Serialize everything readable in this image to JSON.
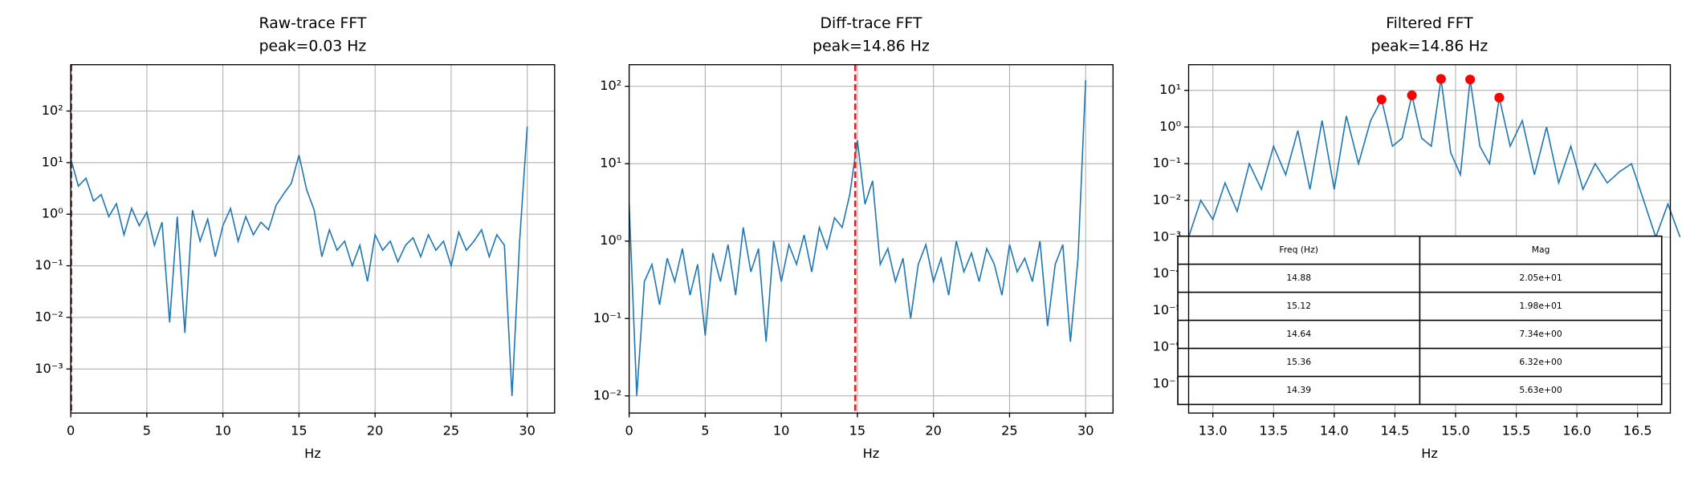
{
  "chart_data": [
    {
      "type": "line",
      "title": "Raw-trace FFT",
      "subtitle": "peak=0.03 Hz",
      "x_label": "Hz",
      "log_y": true,
      "grid": true,
      "color": "#1f77b4",
      "peak_line": {
        "value": 0.03,
        "color": "#d62728"
      },
      "x": [
        0,
        0.5,
        1,
        1.5,
        2,
        2.5,
        3,
        3.5,
        4,
        4.5,
        5,
        5.5,
        6,
        6.5,
        7,
        7.5,
        8,
        8.5,
        9,
        9.5,
        10,
        10.5,
        11,
        11.5,
        12,
        12.5,
        13,
        13.5,
        14,
        14.5,
        15,
        15.5,
        16,
        16.5,
        17,
        17.5,
        18,
        18.5,
        19,
        19.5,
        20,
        20.5,
        21,
        21.5,
        22,
        22.5,
        23,
        23.5,
        24,
        24.5,
        25,
        25.5,
        26,
        26.5,
        27,
        27.5,
        28,
        28.5,
        29,
        29.5,
        30
      ],
      "values": [
        12,
        3.5,
        5,
        1.8,
        2.4,
        0.9,
        1.6,
        0.4,
        1.3,
        0.6,
        1.1,
        0.25,
        0.7,
        0.008,
        0.9,
        0.005,
        1.2,
        0.3,
        0.8,
        0.15,
        0.6,
        1.3,
        0.3,
        0.9,
        0.4,
        0.7,
        0.5,
        1.5,
        2.5,
        4,
        14,
        3,
        1.2,
        0.15,
        0.5,
        0.2,
        0.3,
        0.1,
        0.25,
        0.05,
        0.4,
        0.2,
        0.3,
        0.12,
        0.25,
        0.35,
        0.15,
        0.4,
        0.2,
        0.3,
        0.1,
        0.45,
        0.2,
        0.3,
        0.5,
        0.15,
        0.4,
        0.25,
        0.0003,
        0.3,
        50
      ],
      "xlim": [
        0,
        31.8
      ],
      "xticks": [
        0,
        5,
        10,
        15,
        20,
        25,
        30
      ],
      "ylim": [
        0.00014,
        790
      ],
      "yticks": [
        {
          "value": 100,
          "label": "10²"
        },
        {
          "value": 10,
          "label": "10¹"
        },
        {
          "value": 1,
          "label": "10⁰"
        },
        {
          "value": 0.1,
          "label": "10⁻¹"
        },
        {
          "value": 0.01,
          "label": "10⁻²"
        },
        {
          "value": 0.001,
          "label": "10⁻³"
        }
      ]
    },
    {
      "type": "line",
      "title": "Diff-trace FFT",
      "subtitle": "peak=14.86 Hz",
      "x_label": "Hz",
      "log_y": true,
      "grid": true,
      "color": "#1f77b4",
      "peak_line": {
        "value": 14.86,
        "color": "#d62728"
      },
      "x": [
        0,
        0.5,
        1,
        1.5,
        2,
        2.5,
        3,
        3.5,
        4,
        4.5,
        5,
        5.5,
        6,
        6.5,
        7,
        7.5,
        8,
        8.5,
        9,
        9.5,
        10,
        10.5,
        11,
        11.5,
        12,
        12.5,
        13,
        13.5,
        14,
        14.5,
        15,
        15.5,
        16,
        16.5,
        17,
        17.5,
        18,
        18.5,
        19,
        19.5,
        20,
        20.5,
        21,
        21.5,
        22,
        22.5,
        23,
        23.5,
        24,
        24.5,
        25,
        25.5,
        26,
        26.5,
        27,
        27.5,
        28,
        28.5,
        29,
        29.5,
        30
      ],
      "values": [
        3,
        0.01,
        0.3,
        0.5,
        0.15,
        0.6,
        0.3,
        0.8,
        0.2,
        0.5,
        0.06,
        0.7,
        0.3,
        0.9,
        0.2,
        1.5,
        0.4,
        0.8,
        0.05,
        1,
        0.3,
        0.9,
        0.5,
        1.2,
        0.4,
        1.5,
        0.8,
        2,
        1.5,
        4,
        20,
        3,
        6,
        0.5,
        0.8,
        0.3,
        0.6,
        0.1,
        0.5,
        0.9,
        0.3,
        0.6,
        0.2,
        1,
        0.4,
        0.7,
        0.3,
        0.8,
        0.5,
        0.2,
        0.9,
        0.4,
        0.6,
        0.3,
        1,
        0.08,
        0.5,
        0.9,
        0.05,
        0.6,
        120
      ],
      "xlim": [
        0,
        31.8
      ],
      "xticks": [
        0,
        5,
        10,
        15,
        20,
        25,
        30
      ],
      "ylim": [
        0.006,
        190
      ],
      "yticks": [
        {
          "value": 100,
          "label": "10²"
        },
        {
          "value": 10,
          "label": "10¹"
        },
        {
          "value": 1,
          "label": "10⁰"
        },
        {
          "value": 0.1,
          "label": "10⁻¹"
        },
        {
          "value": 0.01,
          "label": "10⁻²"
        }
      ]
    },
    {
      "type": "line",
      "title": "Filtered FFT",
      "subtitle": "peak=14.86 Hz",
      "x_label": "Hz",
      "log_y": true,
      "grid": true,
      "color": "#1f77b4",
      "x": [
        12.8,
        12.9,
        13.0,
        13.1,
        13.2,
        13.3,
        13.4,
        13.5,
        13.6,
        13.7,
        13.8,
        13.9,
        14.0,
        14.1,
        14.2,
        14.3,
        14.39,
        14.48,
        14.56,
        14.64,
        14.72,
        14.8,
        14.88,
        14.96,
        15.04,
        15.12,
        15.2,
        15.28,
        15.36,
        15.45,
        15.55,
        15.65,
        15.75,
        15.85,
        15.95,
        16.05,
        16.15,
        16.25,
        16.35,
        16.45,
        16.55,
        16.65,
        16.75,
        16.85
      ],
      "values": [
        0.001,
        0.01,
        0.003,
        0.03,
        0.005,
        0.1,
        0.02,
        0.3,
        0.05,
        0.8,
        0.02,
        1.5,
        0.02,
        2,
        0.1,
        1.5,
        5.63,
        0.3,
        0.5,
        7.34,
        0.5,
        0.3,
        20.5,
        0.2,
        0.05,
        19.8,
        0.3,
        0.1,
        6.32,
        0.3,
        1.5,
        0.05,
        1,
        0.03,
        0.3,
        0.02,
        0.1,
        0.03,
        0.06,
        0.1,
        0.01,
        0.001,
        0.008,
        0.001
      ],
      "markers": {
        "x": [
          14.88,
          15.12,
          14.64,
          15.36,
          14.39
        ],
        "values": [
          20.5,
          19.8,
          7.34,
          6.32,
          5.63
        ],
        "color": "#ff0000"
      },
      "xlim": [
        12.8,
        16.77
      ],
      "xticks": [
        {
          "value": 13,
          "label": "13.0"
        },
        13.5,
        {
          "value": 14,
          "label": "14.0"
        },
        14.5,
        {
          "value": 15,
          "label": "15.0"
        },
        15.5,
        {
          "value": 16,
          "label": "16.0"
        },
        16.5
      ],
      "ylim": [
        1.6e-08,
        50
      ],
      "yticks": [
        {
          "value": 10,
          "label": "10¹"
        },
        {
          "value": 1,
          "label": "10⁰"
        },
        {
          "value": 0.1,
          "label": "10⁻¹"
        },
        {
          "value": 0.01,
          "label": "10⁻²"
        },
        {
          "value": 0.001,
          "label": "10⁻³"
        },
        {
          "value": 0.0001,
          "label": "10⁻⁴"
        },
        {
          "value": 1e-05,
          "label": "10⁻⁵"
        },
        {
          "value": 1e-06,
          "label": "10⁻⁶"
        },
        {
          "value": 1e-07,
          "label": "10⁻⁷"
        }
      ],
      "table": {
        "columns": [
          "Freq (Hz)",
          "Mag"
        ],
        "rows": [
          [
            "14.88",
            "2.05e+01"
          ],
          [
            "15.12",
            "1.98e+01"
          ],
          [
            "14.64",
            "7.34e+00"
          ],
          [
            "15.36",
            "6.32e+00"
          ],
          [
            "14.39",
            "5.63e+00"
          ]
        ]
      }
    }
  ]
}
